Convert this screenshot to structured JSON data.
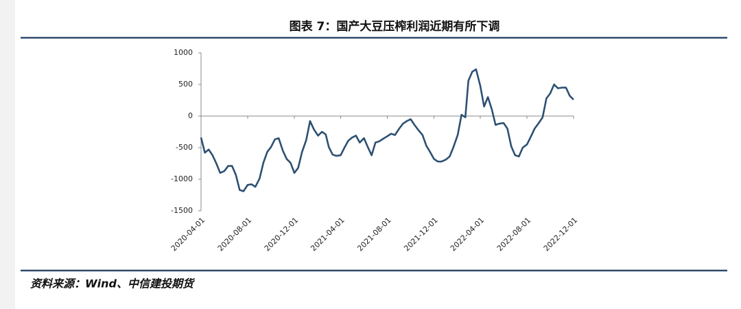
{
  "chart_data": {
    "type": "line",
    "title": "图表 7：国产大豆压榨利润近期有所下调",
    "source": "资料来源：Wind、中信建投期货",
    "x": [
      "2020-04-01",
      "2020-04-11",
      "2020-04-21",
      "2020-05-01",
      "2020-05-11",
      "2020-05-21",
      "2020-06-01",
      "2020-06-11",
      "2020-06-21",
      "2020-07-01",
      "2020-07-11",
      "2020-07-21",
      "2020-08-01",
      "2020-08-11",
      "2020-08-21",
      "2020-09-01",
      "2020-09-11",
      "2020-09-21",
      "2020-10-01",
      "2020-10-11",
      "2020-10-21",
      "2020-11-01",
      "2020-11-11",
      "2020-11-21",
      "2020-12-01",
      "2020-12-11",
      "2020-12-21",
      "2021-01-01",
      "2021-01-11",
      "2021-01-21",
      "2021-02-01",
      "2021-02-11",
      "2021-02-21",
      "2021-03-01",
      "2021-03-11",
      "2021-03-21",
      "2021-04-01",
      "2021-04-11",
      "2021-04-21",
      "2021-05-01",
      "2021-05-11",
      "2021-05-21",
      "2021-06-01",
      "2021-06-11",
      "2021-06-21",
      "2021-07-01",
      "2021-07-11",
      "2021-07-21",
      "2021-08-01",
      "2021-08-11",
      "2021-08-21",
      "2021-09-01",
      "2021-09-11",
      "2021-09-21",
      "2021-10-01",
      "2021-10-11",
      "2021-10-21",
      "2021-11-01",
      "2021-11-11",
      "2021-11-21",
      "2021-12-01",
      "2021-12-11",
      "2021-12-21",
      "2022-01-01",
      "2022-01-11",
      "2022-01-21",
      "2022-02-01",
      "2022-02-11",
      "2022-02-21",
      "2022-03-01",
      "2022-03-11",
      "2022-03-21",
      "2022-04-01",
      "2022-04-11",
      "2022-04-21",
      "2022-05-01",
      "2022-05-11",
      "2022-05-21",
      "2022-06-01",
      "2022-06-11",
      "2022-06-21",
      "2022-07-01",
      "2022-07-11",
      "2022-07-21",
      "2022-08-01",
      "2022-08-11",
      "2022-08-21",
      "2022-09-01",
      "2022-09-11",
      "2022-09-21",
      "2022-10-01",
      "2022-10-11",
      "2022-10-21",
      "2022-11-01",
      "2022-11-11",
      "2022-11-21",
      "2022-12-01"
    ],
    "series": [
      {
        "color": "#2d5072",
        "values": [
          -340,
          -580,
          -530,
          -620,
          -750,
          -900,
          -870,
          -790,
          -790,
          -930,
          -1170,
          -1190,
          -1090,
          -1080,
          -1120,
          -990,
          -740,
          -570,
          -490,
          -370,
          -350,
          -550,
          -680,
          -740,
          -900,
          -820,
          -570,
          -380,
          -80,
          -210,
          -310,
          -250,
          -290,
          -490,
          -610,
          -630,
          -620,
          -500,
          -390,
          -340,
          -310,
          -420,
          -350,
          -490,
          -620,
          -420,
          -400,
          -360,
          -320,
          -280,
          -300,
          -200,
          -120,
          -80,
          -50,
          -140,
          -220,
          -300,
          -470,
          -570,
          -680,
          -720,
          -720,
          -690,
          -640,
          -490,
          -300,
          20,
          -20,
          560,
          700,
          740,
          480,
          150,
          300,
          110,
          -140,
          -120,
          -110,
          -200,
          -480,
          -620,
          -640,
          -500,
          -450,
          -330,
          -200,
          -110,
          -20,
          280,
          360,
          500,
          440,
          450,
          450,
          320,
          260
        ]
      }
    ],
    "xlim": [
      "2020-04-01",
      "2022-12-01"
    ],
    "xticks": [
      "2020-04-01",
      "2020-08-01",
      "2020-12-01",
      "2021-04-01",
      "2021-08-01",
      "2021-12-01",
      "2022-04-01",
      "2022-08-01",
      "2022-12-01"
    ],
    "ylim": [
      -1500,
      1000
    ],
    "yticks": [
      -1500,
      -1000,
      -500,
      0,
      500,
      1000
    ]
  }
}
